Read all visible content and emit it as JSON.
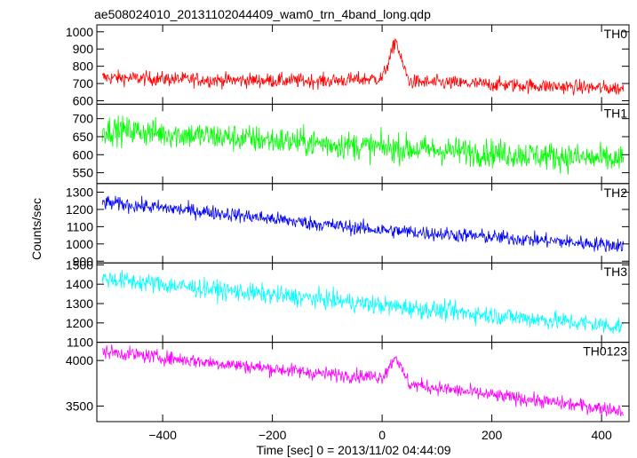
{
  "title": "ae508024010_20131102044409_wam0_trn_4band_long.qdp",
  "xlabel": "Time [sec] 0 = 2013/11/02 04:44:09",
  "ylabel": "Counts/sec",
  "chart_data": {
    "type": "line",
    "x_range": [
      -520,
      450
    ],
    "x_ticks": [
      -400,
      -200,
      0,
      200,
      400
    ],
    "x_tick_labels": [
      "−400",
      "−200",
      "0",
      "200",
      "400"
    ],
    "time_resolution_sec": 1,
    "panels": [
      {
        "name": "TH0",
        "color": "#ff0000",
        "ylim": [
          580,
          1040
        ],
        "yticks": [
          600,
          700,
          800,
          900,
          1000
        ],
        "profile": {
          "x": [
            -510,
            -300,
            -100,
            0,
            15,
            25,
            35,
            50,
            200,
            440
          ],
          "y": [
            735,
            720,
            715,
            730,
            850,
            960,
            830,
            710,
            695,
            670
          ]
        },
        "noise_amplitude": 30
      },
      {
        "name": "TH1",
        "color": "#00ff00",
        "ylim": [
          520,
          740
        ],
        "yticks": [
          550,
          600,
          650,
          700
        ],
        "profile": {
          "x": [
            -510,
            -300,
            -100,
            0,
            200,
            440
          ],
          "y": [
            670,
            650,
            630,
            620,
            605,
            585
          ]
        },
        "noise_amplitude": 28
      },
      {
        "name": "TH2",
        "color": "#0000ff",
        "ylim": [
          890,
          1350
        ],
        "yticks": [
          900,
          1000,
          1100,
          1200,
          1300
        ],
        "profile": {
          "x": [
            -510,
            -300,
            -100,
            0,
            200,
            440
          ],
          "y": [
            1240,
            1180,
            1110,
            1080,
            1040,
            990
          ]
        },
        "noise_amplitude": 30
      },
      {
        "name": "TH3",
        "color": "#00ffff",
        "ylim": [
          1100,
          1510
        ],
        "yticks": [
          1100,
          1200,
          1300,
          1400,
          1500
        ],
        "profile": {
          "x": [
            -510,
            -300,
            -100,
            0,
            200,
            440
          ],
          "y": [
            1430,
            1370,
            1320,
            1290,
            1240,
            1180
          ]
        },
        "noise_amplitude": 35
      },
      {
        "name": "TH0123",
        "color": "#ff00ff",
        "ylim": [
          3330,
          4200
        ],
        "yticks": [
          3500,
          4000
        ],
        "profile": {
          "x": [
            -510,
            -300,
            -100,
            0,
            15,
            25,
            35,
            50,
            200,
            440
          ],
          "y": [
            4100,
            3970,
            3850,
            3820,
            3950,
            4060,
            3900,
            3740,
            3620,
            3450
          ]
        },
        "noise_amplitude": 55
      }
    ]
  }
}
